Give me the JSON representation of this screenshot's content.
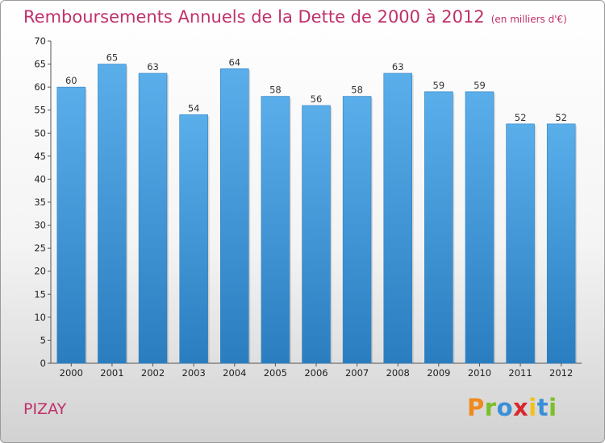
{
  "chart_data": {
    "type": "bar",
    "title": "Remboursements Annuels de la Dette de 2000 à 2012",
    "unit_note": "(en milliers d'€)",
    "categories": [
      "2000",
      "2001",
      "2002",
      "2003",
      "2004",
      "2005",
      "2006",
      "2007",
      "2008",
      "2009",
      "2010",
      "2011",
      "2012"
    ],
    "values": [
      60,
      65,
      63,
      54,
      64,
      58,
      56,
      58,
      63,
      59,
      59,
      52,
      52
    ],
    "ylim": [
      0,
      70
    ],
    "yticks": [
      0,
      5,
      10,
      15,
      20,
      25,
      30,
      35,
      40,
      45,
      50,
      55,
      60,
      65,
      70
    ],
    "grid": false,
    "legend": "none",
    "bar_color_top": "#5aaeea",
    "bar_color_bottom": "#2a7ec0"
  },
  "footer": {
    "commune": "PIZAY",
    "brand": "Proxiti",
    "brand_colors": [
      "#f08a1c",
      "#7bbf2a",
      "#3a8fd8",
      "#d8282e",
      "#f2c21a",
      "#3a8fd8",
      "#7bbf2a"
    ]
  }
}
